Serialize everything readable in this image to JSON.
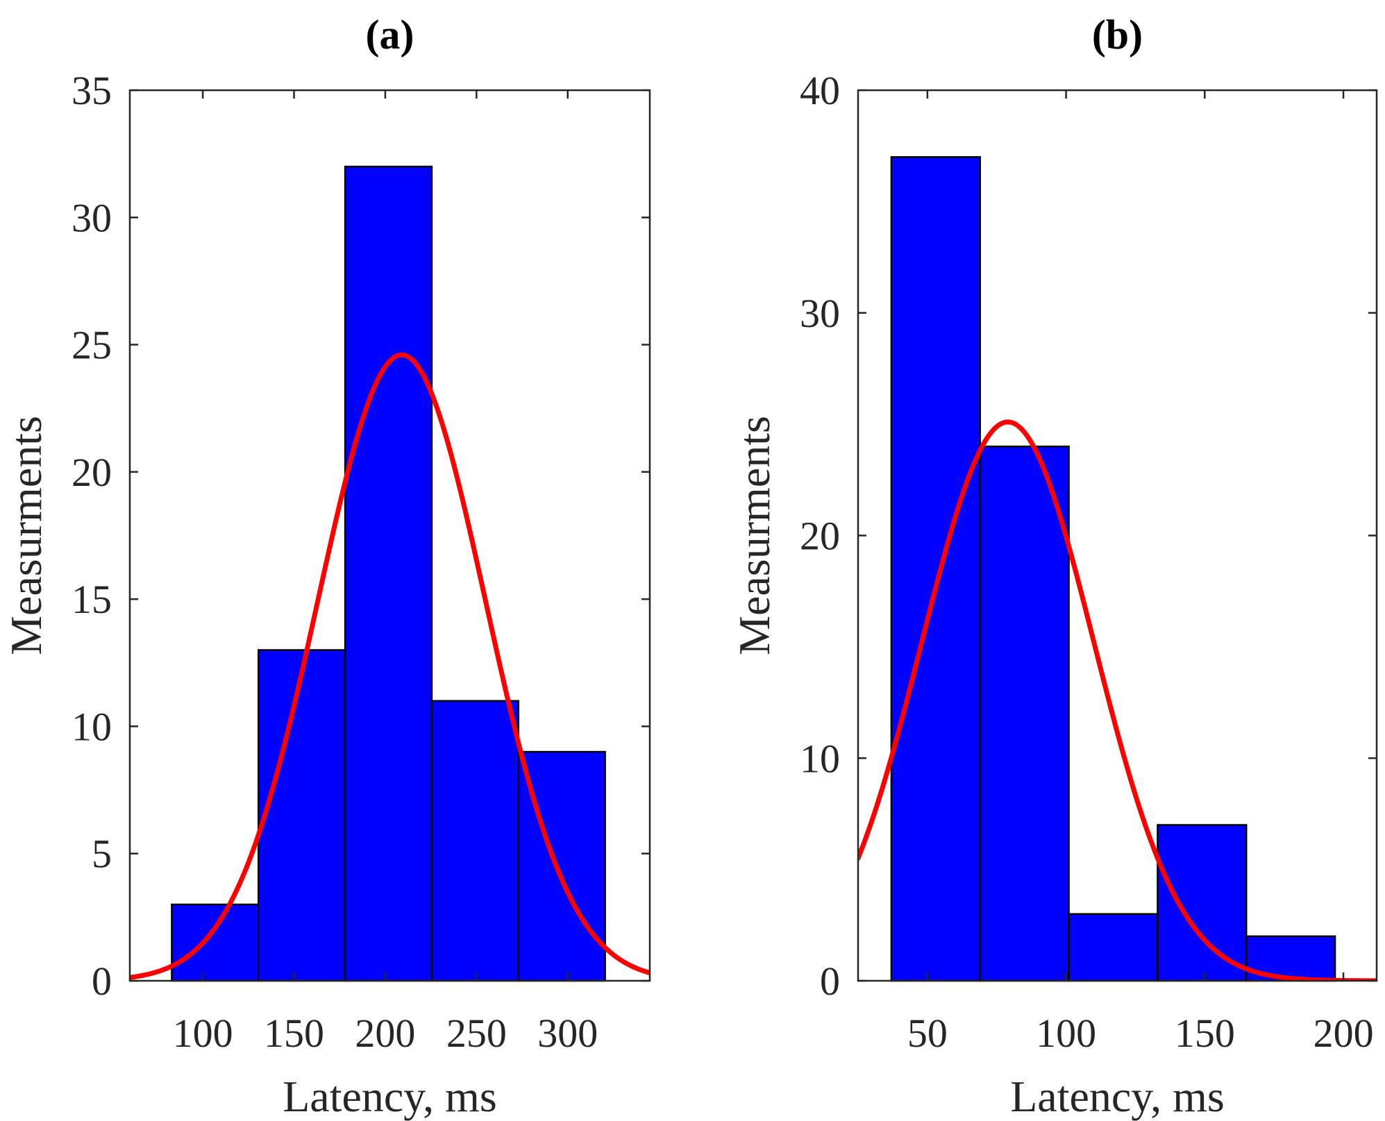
{
  "chart_data": [
    {
      "type": "bar",
      "subtype": "histogram_with_normal_fit",
      "title": "(a)",
      "xlabel": "Latency, ms",
      "ylabel": "Measurments",
      "xlim": [
        60,
        345
      ],
      "ylim": [
        0,
        35
      ],
      "xticks": [
        100,
        150,
        200,
        250,
        300
      ],
      "yticks": [
        0,
        5,
        10,
        15,
        20,
        25,
        30,
        35
      ],
      "bins": [
        {
          "x0": 83,
          "x1": 130.5,
          "value": 3
        },
        {
          "x0": 130.5,
          "x1": 178,
          "value": 13
        },
        {
          "x0": 178,
          "x1": 225.5,
          "value": 32
        },
        {
          "x0": 225.5,
          "x1": 273,
          "value": 11
        },
        {
          "x0": 273,
          "x1": 320.5,
          "value": 9
        }
      ],
      "fit": {
        "distribution": "normal",
        "mean": 209,
        "std": 46,
        "peak": 24.6
      },
      "bar_color": "#0000ff",
      "line_color": "#ff0000"
    },
    {
      "type": "bar",
      "subtype": "histogram_with_normal_fit",
      "title": "(b)",
      "xlabel": "Latency, ms",
      "ylabel": "Measurments",
      "xlim": [
        25,
        212
      ],
      "ylim": [
        0,
        40
      ],
      "xticks": [
        50,
        100,
        150,
        200
      ],
      "yticks": [
        0,
        10,
        20,
        30,
        40
      ],
      "bins": [
        {
          "x0": 37,
          "x1": 69,
          "value": 37
        },
        {
          "x0": 69,
          "x1": 101,
          "value": 24
        },
        {
          "x0": 101,
          "x1": 133,
          "value": 3
        },
        {
          "x0": 133,
          "x1": 165,
          "value": 7
        },
        {
          "x0": 165,
          "x1": 197,
          "value": 2
        }
      ],
      "fit": {
        "distribution": "normal",
        "mean": 79,
        "std": 31,
        "peak": 25.1
      },
      "bar_color": "#0000ff",
      "line_color": "#ff0000"
    }
  ]
}
